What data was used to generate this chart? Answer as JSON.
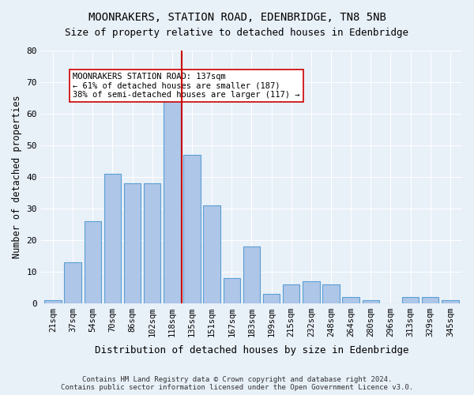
{
  "title": "MOONRAKERS, STATION ROAD, EDENBRIDGE, TN8 5NB",
  "subtitle": "Size of property relative to detached houses in Edenbridge",
  "xlabel": "Distribution of detached houses by size in Edenbridge",
  "ylabel": "Number of detached properties",
  "categories": [
    "21sqm",
    "37sqm",
    "54sqm",
    "70sqm",
    "86sqm",
    "102sqm",
    "118sqm",
    "135sqm",
    "151sqm",
    "167sqm",
    "183sqm",
    "199sqm",
    "215sqm",
    "232sqm",
    "248sqm",
    "264sqm",
    "280sqm",
    "296sqm",
    "313sqm",
    "329sqm",
    "345sqm"
  ],
  "values": [
    1,
    13,
    26,
    41,
    38,
    38,
    65,
    47,
    31,
    8,
    18,
    3,
    6,
    7,
    6,
    2,
    1,
    0,
    2,
    2,
    1
  ],
  "bar_color": "#aec6e8",
  "bar_edge_color": "#5a9fd4",
  "vline_x_index": 7,
  "vline_color": "#cc0000",
  "annotation_text": "MOONRAKERS STATION ROAD: 137sqm\n← 61% of detached houses are smaller (187)\n38% of semi-detached houses are larger (117) →",
  "annotation_box_color": "#ffffff",
  "annotation_box_edge": "#cc0000",
  "footer_text": "Contains HM Land Registry data © Crown copyright and database right 2024.\nContains public sector information licensed under the Open Government Licence v3.0.",
  "bg_color": "#e8f0f8",
  "plot_bg_color": "#e8f0f8",
  "ylim": [
    0,
    80
  ],
  "yticks": [
    0,
    10,
    20,
    30,
    40,
    50,
    60,
    70,
    80
  ]
}
